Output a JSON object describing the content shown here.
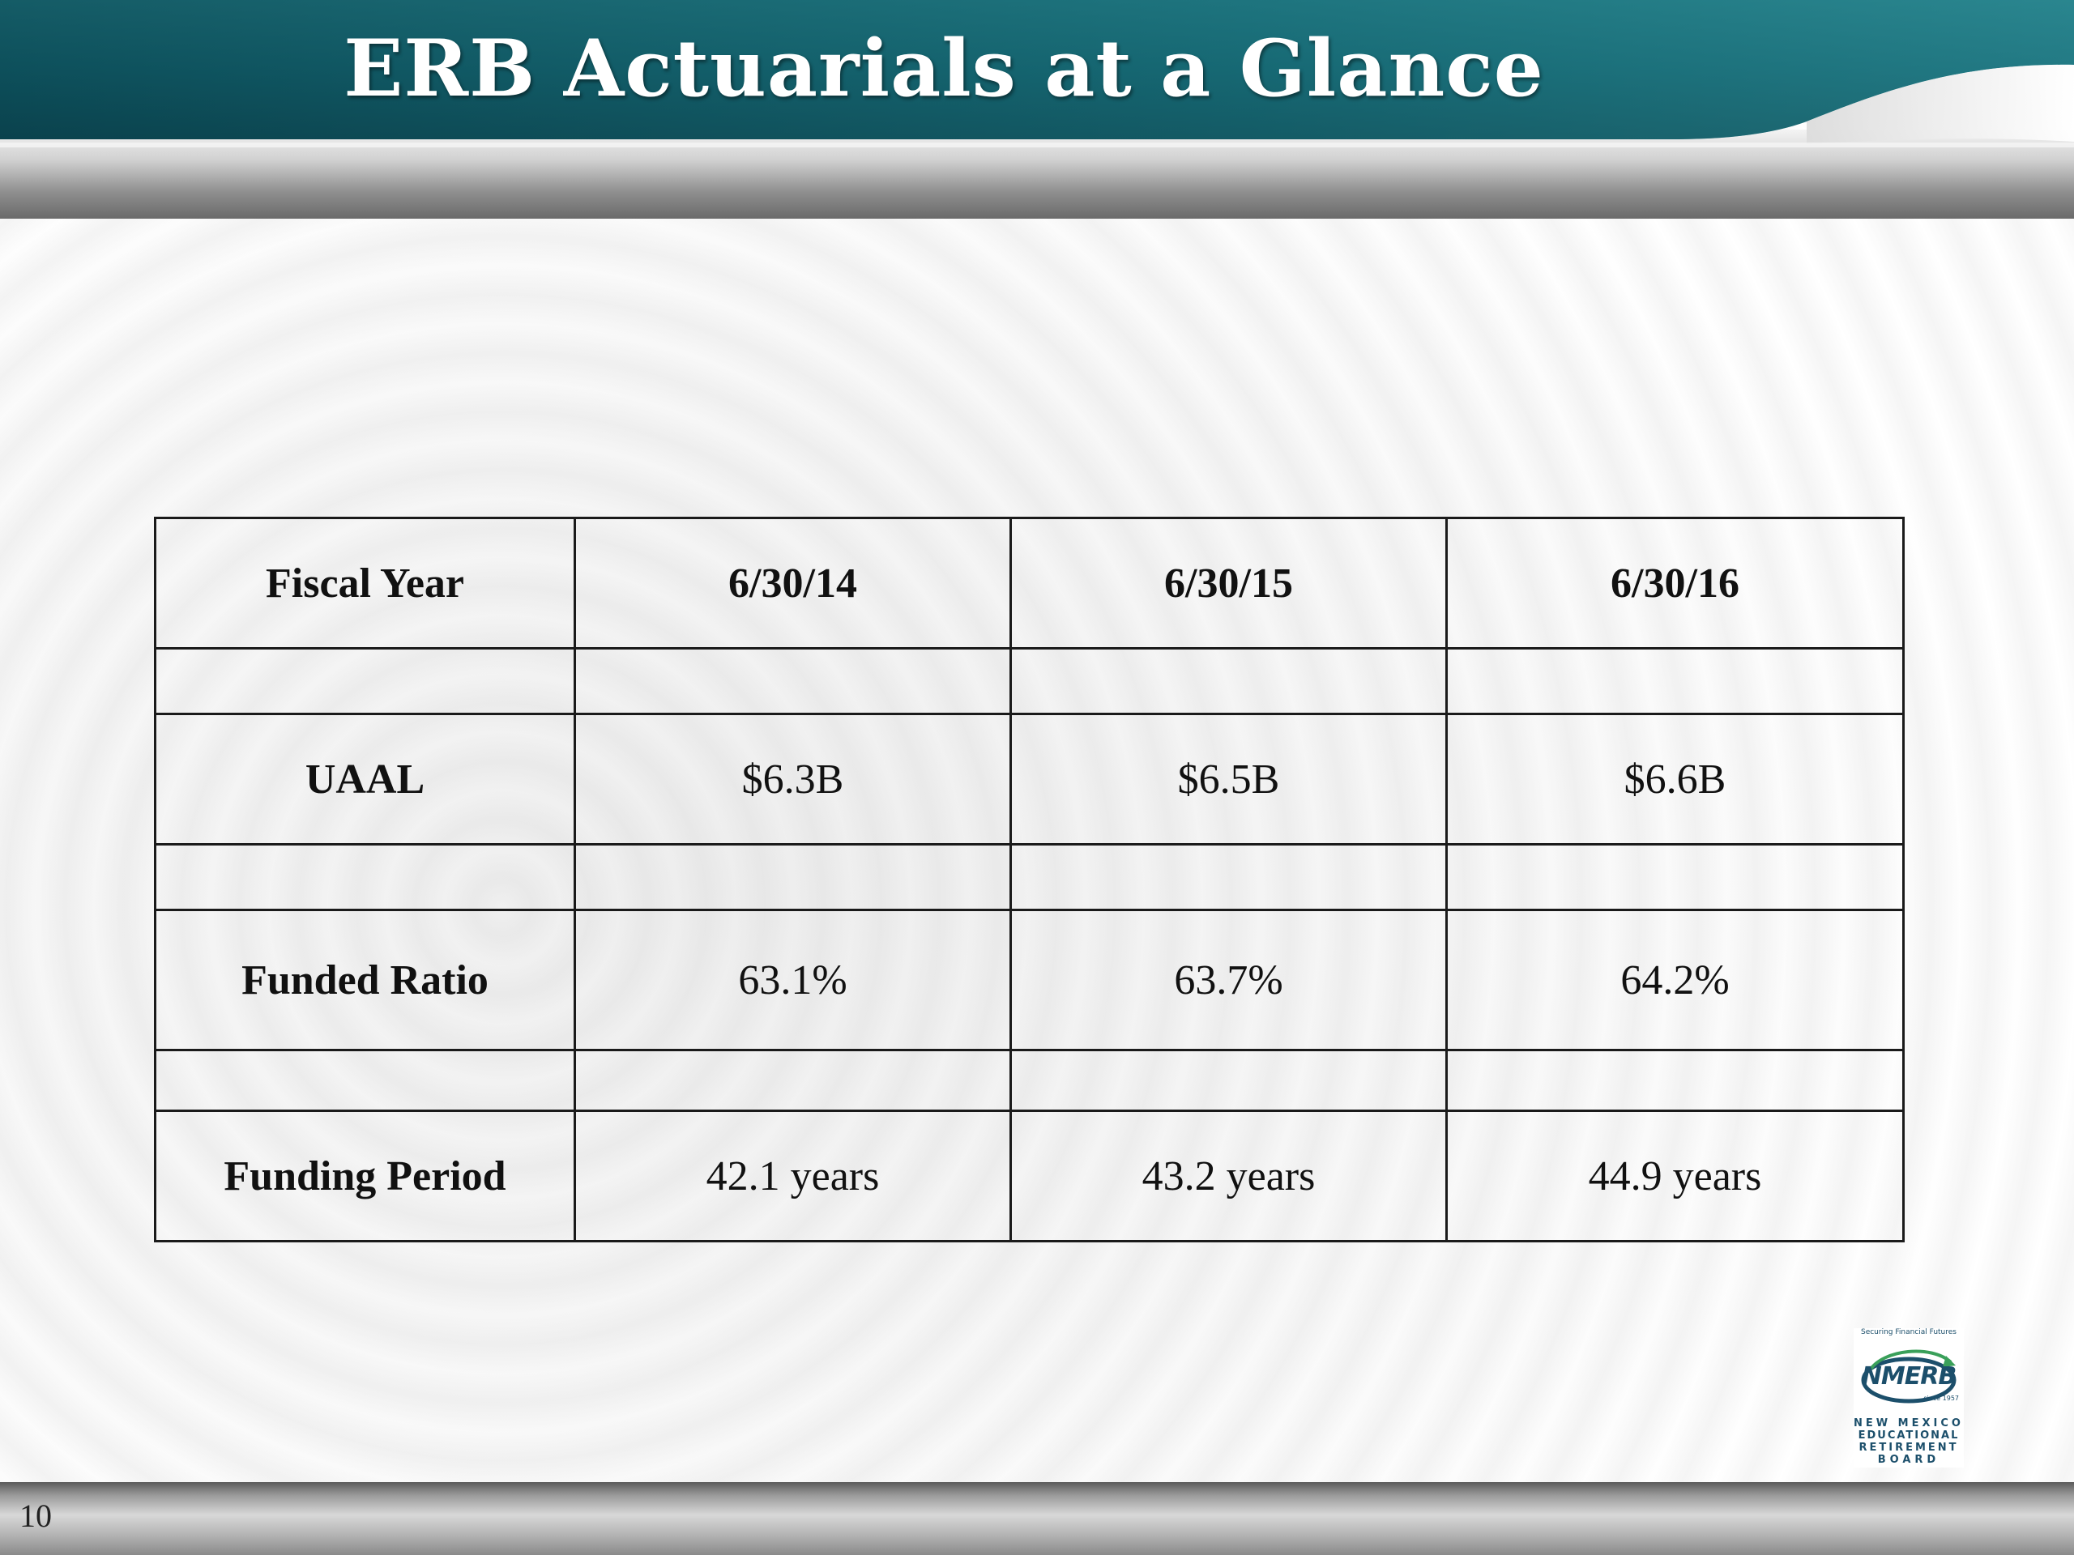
{
  "slide": {
    "title": "ERB Actuarials at a Glance",
    "page_number": "10"
  },
  "table": {
    "header": {
      "label": "Fiscal Year",
      "columns": [
        "6/30/14",
        "6/30/15",
        "6/30/16"
      ]
    },
    "rows": [
      {
        "label": "UAAL",
        "values": [
          "$6.3B",
          "$6.5B",
          "$6.6B"
        ]
      },
      {
        "label": "Funded Ratio",
        "values": [
          "63.1%",
          "63.7%",
          "64.2%"
        ]
      },
      {
        "label": "Funding Period",
        "values": [
          "42.1 years",
          "43.2 years",
          "44.9 years"
        ]
      }
    ]
  },
  "logo": {
    "name": "NMERB",
    "tagline": "Securing Financial Futures",
    "since": "since 1957",
    "lines": [
      "NEW MEXICO",
      "EDUCATIONAL",
      "RETIREMENT",
      "BOARD"
    ]
  },
  "colors": {
    "header_teal_dark": "#0d4a55",
    "header_teal": "#2b8791",
    "logo_blue": "#1c4f6b",
    "logo_green": "#3aa05a"
  }
}
